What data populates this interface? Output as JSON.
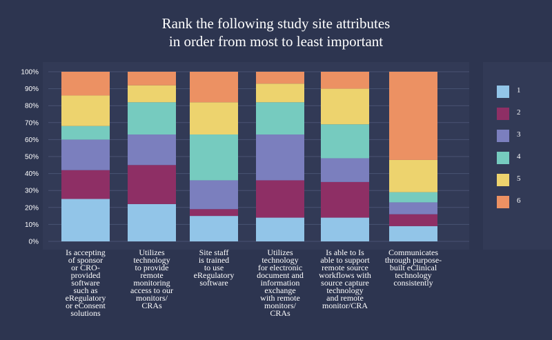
{
  "chart_data": {
    "type": "bar",
    "stacked": true,
    "title_lines": [
      "Rank the following study site attributes",
      "in order from most to least important"
    ],
    "ylim": [
      0,
      100
    ],
    "y_ticks": [
      "0%",
      "10%",
      "20%",
      "30%",
      "40%",
      "50%",
      "60%",
      "70%",
      "80%",
      "90%",
      "100%"
    ],
    "categories": [
      [
        "Is accepting",
        "of sponsor",
        "or CRO-",
        "provided",
        "software",
        "such as",
        "eRegulatory",
        "or eConsent",
        "solutions"
      ],
      [
        "Utilizes",
        "technology",
        "to provide",
        "remote",
        "monitoring",
        "access to our",
        "monitors/",
        "CRAs"
      ],
      [
        "Site staff",
        "is trained",
        "to use",
        "eRegulatory",
        "software"
      ],
      [
        "Utilizes",
        "technology",
        "for electronic",
        "document and",
        "information",
        "exchange",
        "with remote",
        "monitors/",
        "CRAs"
      ],
      [
        "Is able to Is",
        "able to support",
        "remote source",
        "workflows with",
        "source capture",
        "technology",
        "and remote",
        "monitor/CRA"
      ],
      [
        "Communicates",
        "through purpose-",
        "built eClinical",
        "technology",
        "consistently"
      ]
    ],
    "series": [
      {
        "name": "1",
        "color": "#92c5e8",
        "values": [
          25,
          22,
          15,
          14,
          14,
          9
        ]
      },
      {
        "name": "2",
        "color": "#8e2f65",
        "values": [
          17,
          23,
          4,
          22,
          21,
          7
        ]
      },
      {
        "name": "3",
        "color": "#7b7fbe",
        "values": [
          18,
          18,
          17,
          27,
          14,
          7
        ]
      },
      {
        "name": "4",
        "color": "#76cbbf",
        "values": [
          8,
          19,
          27,
          19,
          20,
          6
        ]
      },
      {
        "name": "5",
        "color": "#edd36e",
        "values": [
          18,
          10,
          19,
          11,
          21,
          19
        ]
      },
      {
        "name": "6",
        "color": "#ec9163",
        "values": [
          14,
          8,
          18,
          7,
          10,
          52
        ]
      }
    ],
    "legend_position": "right",
    "grid": true
  }
}
